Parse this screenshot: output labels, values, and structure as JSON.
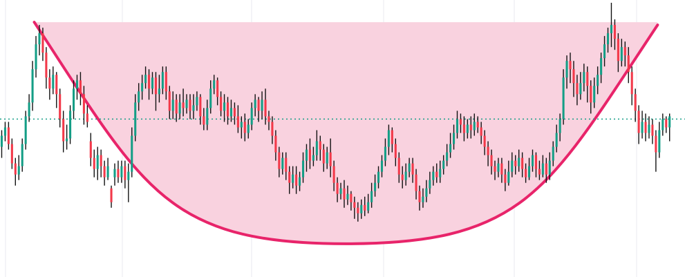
{
  "colors": {
    "background": "#ffffff",
    "grid": "#e9e9ef",
    "up": "#149e86",
    "down": "#f23849",
    "wick": "#111111",
    "cup_fill": "#f9d2df",
    "cup_stroke": "#e8246a",
    "level_line": "#149e86"
  },
  "chart_data": {
    "type": "candlestick",
    "title": "",
    "xlabel": "",
    "ylabel": "",
    "x_range": [
      0,
      200
    ],
    "ylim": [
      0,
      100
    ],
    "grid": "vertical-only",
    "legend": "none",
    "level": 57,
    "cup": {
      "left_rim": [
        10,
        92
      ],
      "bottom": [
        101,
        12
      ],
      "right_rim": [
        192,
        91
      ],
      "fill_top": 92
    },
    "candles": [
      [
        0.5,
        47,
        51,
        43,
        53
      ],
      [
        1.5,
        51,
        54,
        49,
        56
      ],
      [
        2.5,
        54,
        48,
        46,
        56
      ],
      [
        3.5,
        48,
        41,
        39,
        50
      ],
      [
        4.5,
        41,
        37,
        33,
        43
      ],
      [
        5.5,
        37,
        40,
        35,
        44
      ],
      [
        6.5,
        40,
        48,
        38,
        50
      ],
      [
        7.5,
        48,
        58,
        46,
        60
      ],
      [
        8.5,
        58,
        63,
        56,
        66
      ],
      [
        9.5,
        63,
        75,
        60,
        78
      ],
      [
        10.5,
        75,
        84,
        72,
        87
      ],
      [
        11.5,
        84,
        88,
        80,
        91
      ],
      [
        12.5,
        88,
        81,
        78,
        90
      ],
      [
        13.5,
        81,
        72,
        68,
        83
      ],
      [
        14.5,
        72,
        68,
        64,
        75
      ],
      [
        15.5,
        68,
        73,
        66,
        76
      ],
      [
        16.5,
        73,
        66,
        61,
        74
      ],
      [
        17.5,
        66,
        57,
        54,
        68
      ],
      [
        18.5,
        57,
        49,
        45,
        60
      ],
      [
        19.5,
        49,
        50,
        46,
        55
      ],
      [
        20.5,
        50,
        60,
        48,
        62
      ],
      [
        21.5,
        60,
        68,
        57,
        71
      ],
      [
        22.5,
        68,
        71,
        64,
        73
      ],
      [
        23.5,
        71,
        66,
        62,
        74
      ],
      [
        24.5,
        66,
        59,
        55,
        69
      ],
      [
        25.5,
        59,
        56,
        54,
        62
      ],
      [
        26.5,
        49,
        43,
        40,
        52
      ],
      [
        27.5,
        43,
        39,
        36,
        46
      ],
      [
        28.5,
        39,
        44,
        35,
        47
      ],
      [
        29.5,
        44,
        40,
        36,
        46
      ],
      [
        30.5,
        40,
        36,
        33,
        42
      ],
      [
        31.5,
        36,
        40,
        35,
        43
      ],
      [
        32.5,
        32,
        27,
        25,
        33
      ],
      [
        33.5,
        36,
        39,
        33,
        41
      ],
      [
        34.5,
        39,
        36,
        34,
        42
      ],
      [
        35.5,
        36,
        40,
        34,
        42
      ],
      [
        36.5,
        40,
        35,
        32,
        42
      ],
      [
        37.5,
        35,
        38,
        27,
        41
      ],
      [
        38.5,
        38,
        51,
        36,
        54
      ],
      [
        39.5,
        51,
        63,
        49,
        66
      ],
      [
        40.5,
        63,
        67,
        60,
        70
      ],
      [
        41.5,
        67,
        70,
        64,
        73
      ],
      [
        42.5,
        70,
        73,
        68,
        76
      ],
      [
        43.5,
        73,
        68,
        64,
        75
      ],
      [
        44.5,
        68,
        72,
        66,
        74
      ],
      [
        45.5,
        72,
        66,
        60,
        74
      ],
      [
        46.5,
        66,
        68,
        63,
        73
      ],
      [
        47.5,
        68,
        74,
        66,
        76
      ],
      [
        48.5,
        74,
        67,
        64,
        76
      ],
      [
        49.5,
        67,
        60,
        57,
        69
      ],
      [
        50.5,
        60,
        64,
        57,
        67
      ],
      [
        51.5,
        64,
        59,
        56,
        66
      ],
      [
        52.5,
        59,
        63,
        57,
        66
      ],
      [
        53.5,
        63,
        61,
        58,
        68
      ],
      [
        54.5,
        61,
        64,
        59,
        66
      ],
      [
        55.5,
        64,
        60,
        57,
        66
      ],
      [
        56.5,
        60,
        62,
        57,
        66
      ],
      [
        57.5,
        62,
        65,
        60,
        67
      ],
      [
        58.5,
        65,
        58,
        55,
        66
      ],
      [
        59.5,
        58,
        55,
        53,
        61
      ],
      [
        60.5,
        55,
        61,
        53,
        64
      ],
      [
        61.5,
        61,
        68,
        59,
        71
      ],
      [
        62.5,
        68,
        71,
        66,
        73
      ],
      [
        63.5,
        71,
        65,
        62,
        72
      ],
      [
        64.5,
        65,
        60,
        58,
        67
      ],
      [
        65.5,
        60,
        63,
        56,
        66
      ],
      [
        66.5,
        63,
        58,
        55,
        65
      ],
      [
        67.5,
        58,
        61,
        56,
        64
      ],
      [
        68.5,
        61,
        58,
        55,
        63
      ],
      [
        69.5,
        58,
        54,
        52,
        62
      ],
      [
        70.5,
        54,
        56,
        50,
        58
      ],
      [
        71.5,
        56,
        52,
        49,
        59
      ],
      [
        72.5,
        52,
        55,
        50,
        57
      ],
      [
        73.5,
        55,
        61,
        53,
        63
      ],
      [
        74.5,
        61,
        64,
        58,
        66
      ],
      [
        75.5,
        64,
        60,
        56,
        65
      ],
      [
        76.5,
        60,
        64,
        57,
        67
      ],
      [
        77.5,
        64,
        58,
        55,
        68
      ],
      [
        78.5,
        58,
        56,
        53,
        60
      ],
      [
        79.5,
        56,
        51,
        48,
        58
      ],
      [
        80.5,
        51,
        45,
        42,
        53
      ],
      [
        81.5,
        45,
        39,
        36,
        47
      ],
      [
        82.5,
        39,
        43,
        37,
        45
      ],
      [
        83.5,
        43,
        38,
        35,
        45
      ],
      [
        84.5,
        38,
        34,
        30,
        40
      ],
      [
        85.5,
        34,
        37,
        32,
        40
      ],
      [
        86.5,
        37,
        33,
        30,
        40
      ],
      [
        87.5,
        33,
        36,
        31,
        38
      ],
      [
        88.5,
        36,
        42,
        34,
        45
      ],
      [
        89.5,
        42,
        46,
        38,
        48
      ],
      [
        90.5,
        46,
        42,
        39,
        50
      ],
      [
        91.5,
        42,
        44,
        40,
        47
      ],
      [
        92.5,
        44,
        49,
        42,
        53
      ],
      [
        93.5,
        49,
        46,
        42,
        51
      ],
      [
        94.5,
        46,
        41,
        38,
        48
      ],
      [
        95.5,
        41,
        45,
        39,
        47
      ],
      [
        96.5,
        45,
        40,
        36,
        50
      ],
      [
        97.5,
        40,
        34,
        31,
        42
      ],
      [
        98.5,
        34,
        30,
        27,
        36
      ],
      [
        99.5,
        30,
        32,
        28,
        34
      ],
      [
        100.5,
        32,
        28,
        25,
        35
      ],
      [
        101.5,
        28,
        30,
        26,
        33
      ],
      [
        102.5,
        30,
        27,
        24,
        31
      ],
      [
        103.5,
        27,
        25,
        21,
        29
      ],
      [
        104.5,
        25,
        23,
        20,
        27
      ],
      [
        105.5,
        23,
        26,
        21,
        28
      ],
      [
        106.5,
        26,
        24,
        22,
        29
      ],
      [
        107.5,
        24,
        27,
        23,
        30
      ],
      [
        108.5,
        27,
        31,
        25,
        34
      ],
      [
        109.5,
        31,
        34,
        29,
        37
      ],
      [
        110.5,
        34,
        38,
        32,
        40
      ],
      [
        111.5,
        38,
        42,
        36,
        44
      ],
      [
        112.5,
        42,
        47,
        40,
        50
      ],
      [
        113.5,
        47,
        53,
        44,
        55
      ],
      [
        114.5,
        53,
        48,
        45,
        54
      ],
      [
        115.5,
        48,
        43,
        40,
        50
      ],
      [
        116.5,
        43,
        37,
        34,
        45
      ],
      [
        117.5,
        37,
        35,
        32,
        40
      ],
      [
        118.5,
        35,
        38,
        33,
        41
      ],
      [
        119.5,
        38,
        41,
        36,
        43
      ],
      [
        120.5,
        41,
        37,
        34,
        43
      ],
      [
        121.5,
        37,
        31,
        28,
        39
      ],
      [
        122.5,
        31,
        27,
        24,
        33
      ],
      [
        123.5,
        27,
        29,
        25,
        32
      ],
      [
        124.5,
        29,
        32,
        27,
        35
      ],
      [
        125.5,
        32,
        35,
        30,
        38
      ],
      [
        126.5,
        35,
        38,
        33,
        40
      ],
      [
        127.5,
        38,
        36,
        34,
        41
      ],
      [
        128.5,
        36,
        39,
        34,
        42
      ],
      [
        129.5,
        39,
        42,
        37,
        44
      ],
      [
        130.5,
        42,
        45,
        40,
        48
      ],
      [
        131.5,
        45,
        48,
        43,
        52
      ],
      [
        132.5,
        48,
        52,
        46,
        55
      ],
      [
        133.5,
        52,
        57,
        50,
        60
      ],
      [
        134.5,
        57,
        55,
        52,
        59
      ],
      [
        135.5,
        55,
        52,
        49,
        58
      ],
      [
        136.5,
        52,
        55,
        50,
        57
      ],
      [
        137.5,
        55,
        53,
        50,
        58
      ],
      [
        138.5,
        53,
        56,
        51,
        59
      ],
      [
        139.5,
        56,
        54,
        52,
        58
      ],
      [
        140.5,
        54,
        51,
        48,
        56
      ],
      [
        141.5,
        51,
        47,
        44,
        53
      ],
      [
        142.5,
        47,
        44,
        40,
        49
      ],
      [
        143.5,
        44,
        40,
        37,
        46
      ],
      [
        144.5,
        40,
        38,
        35,
        42
      ],
      [
        145.5,
        38,
        41,
        36,
        43
      ],
      [
        146.5,
        41,
        37,
        34,
        43
      ],
      [
        147.5,
        37,
        34,
        31,
        39
      ],
      [
        148.5,
        34,
        38,
        33,
        42
      ],
      [
        149.5,
        38,
        42,
        36,
        45
      ],
      [
        150.5,
        42,
        40,
        37,
        44
      ],
      [
        151.5,
        40,
        43,
        38,
        46
      ],
      [
        152.5,
        43,
        39,
        36,
        45
      ],
      [
        153.5,
        39,
        36,
        34,
        41
      ],
      [
        154.5,
        36,
        40,
        35,
        43
      ],
      [
        155.5,
        40,
        44,
        38,
        46
      ],
      [
        156.5,
        44,
        39,
        36,
        45
      ],
      [
        157.5,
        39,
        37,
        35,
        42
      ],
      [
        158.5,
        37,
        41,
        36,
        44
      ],
      [
        159.5,
        41,
        37,
        34,
        43
      ],
      [
        160.5,
        37,
        42,
        35,
        45
      ],
      [
        161.5,
        42,
        47,
        40,
        49
      ],
      [
        162.5,
        47,
        52,
        45,
        55
      ],
      [
        163.5,
        52,
        57,
        49,
        59
      ],
      [
        164.5,
        57,
        72,
        55,
        75
      ],
      [
        165.5,
        72,
        78,
        68,
        80
      ],
      [
        166.5,
        78,
        75,
        70,
        81
      ],
      [
        167.5,
        75,
        70,
        65,
        78
      ],
      [
        168.5,
        70,
        66,
        62,
        73
      ],
      [
        169.5,
        66,
        70,
        64,
        74
      ],
      [
        170.5,
        70,
        74,
        67,
        77
      ],
      [
        171.5,
        74,
        69,
        63,
        76
      ],
      [
        172.5,
        69,
        63,
        59,
        71
      ],
      [
        173.5,
        63,
        69,
        61,
        72
      ],
      [
        174.5,
        69,
        73,
        66,
        76
      ],
      [
        175.5,
        73,
        79,
        70,
        81
      ],
      [
        176.5,
        79,
        84,
        76,
        87
      ],
      [
        177.5,
        84,
        88,
        81,
        90
      ],
      [
        178.5,
        88,
        91,
        83,
        99
      ],
      [
        179.5,
        91,
        86,
        82,
        93
      ],
      [
        180.5,
        86,
        78,
        74,
        88
      ],
      [
        181.5,
        78,
        83,
        76,
        86
      ],
      [
        182.5,
        83,
        80,
        76,
        85
      ],
      [
        183.5,
        80,
        74,
        70,
        83
      ],
      [
        184.5,
        74,
        66,
        62,
        76
      ],
      [
        185.5,
        66,
        60,
        56,
        68
      ],
      [
        186.5,
        60,
        52,
        48,
        62
      ],
      [
        187.5,
        52,
        56,
        50,
        60
      ],
      [
        188.5,
        56,
        52,
        49,
        59
      ],
      [
        189.5,
        52,
        55,
        50,
        58
      ],
      [
        190.5,
        55,
        51,
        48,
        57
      ],
      [
        191.5,
        51,
        45,
        38,
        53
      ],
      [
        192.5,
        45,
        53,
        43,
        56
      ],
      [
        193.5,
        53,
        57,
        51,
        59
      ],
      [
        194.5,
        57,
        54,
        52,
        58
      ],
      [
        195.5,
        54,
        58,
        49,
        59
      ]
    ]
  }
}
